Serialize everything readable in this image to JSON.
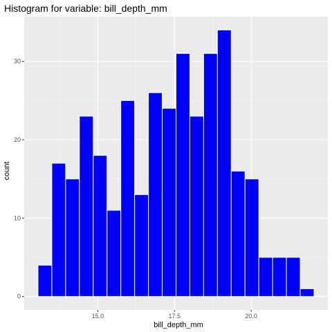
{
  "chart_data": {
    "type": "bar",
    "title": "Histogram for variable: bill_depth_mm",
    "xlabel": "bill_depth_mm",
    "ylabel": "count",
    "bins": [
      {
        "start": 13.05,
        "end": 13.5,
        "count": 4
      },
      {
        "start": 13.5,
        "end": 13.95,
        "count": 17
      },
      {
        "start": 13.95,
        "end": 14.4,
        "count": 15
      },
      {
        "start": 14.4,
        "end": 14.85,
        "count": 23
      },
      {
        "start": 14.85,
        "end": 15.3,
        "count": 18
      },
      {
        "start": 15.3,
        "end": 15.75,
        "count": 11
      },
      {
        "start": 15.75,
        "end": 16.2,
        "count": 25
      },
      {
        "start": 16.2,
        "end": 16.65,
        "count": 13
      },
      {
        "start": 16.65,
        "end": 17.1,
        "count": 26
      },
      {
        "start": 17.1,
        "end": 17.55,
        "count": 24
      },
      {
        "start": 17.55,
        "end": 18.0,
        "count": 31
      },
      {
        "start": 18.0,
        "end": 18.45,
        "count": 23
      },
      {
        "start": 18.45,
        "end": 18.9,
        "count": 31
      },
      {
        "start": 18.9,
        "end": 19.35,
        "count": 34
      },
      {
        "start": 19.35,
        "end": 19.8,
        "count": 16
      },
      {
        "start": 19.8,
        "end": 20.25,
        "count": 15
      },
      {
        "start": 20.25,
        "end": 20.7,
        "count": 5
      },
      {
        "start": 20.7,
        "end": 21.15,
        "count": 5
      },
      {
        "start": 21.15,
        "end": 21.6,
        "count": 5
      },
      {
        "start": 21.6,
        "end": 22.05,
        "count": 1
      }
    ],
    "xlim": [
      12.6,
      22.5
    ],
    "ylim": [
      -1.7,
      35.7
    ],
    "xticks": [
      15.0,
      17.5,
      20.0
    ],
    "xtick_labels": [
      "15.0",
      "17.5",
      "20.0"
    ],
    "yticks": [
      0,
      10,
      20,
      30
    ],
    "ytick_labels": [
      "0",
      "10",
      "20",
      "30"
    ],
    "grid": true,
    "legend": "none",
    "colors": {
      "bar_fill": "#0000ff",
      "bar_outline": "#ffffff",
      "panel_background": "#ebebeb",
      "grid_major": "#ffffff",
      "grid_minor": "#f5f5f5",
      "tick_text": "#4d4d4d",
      "tick_mark": "#333333"
    }
  }
}
